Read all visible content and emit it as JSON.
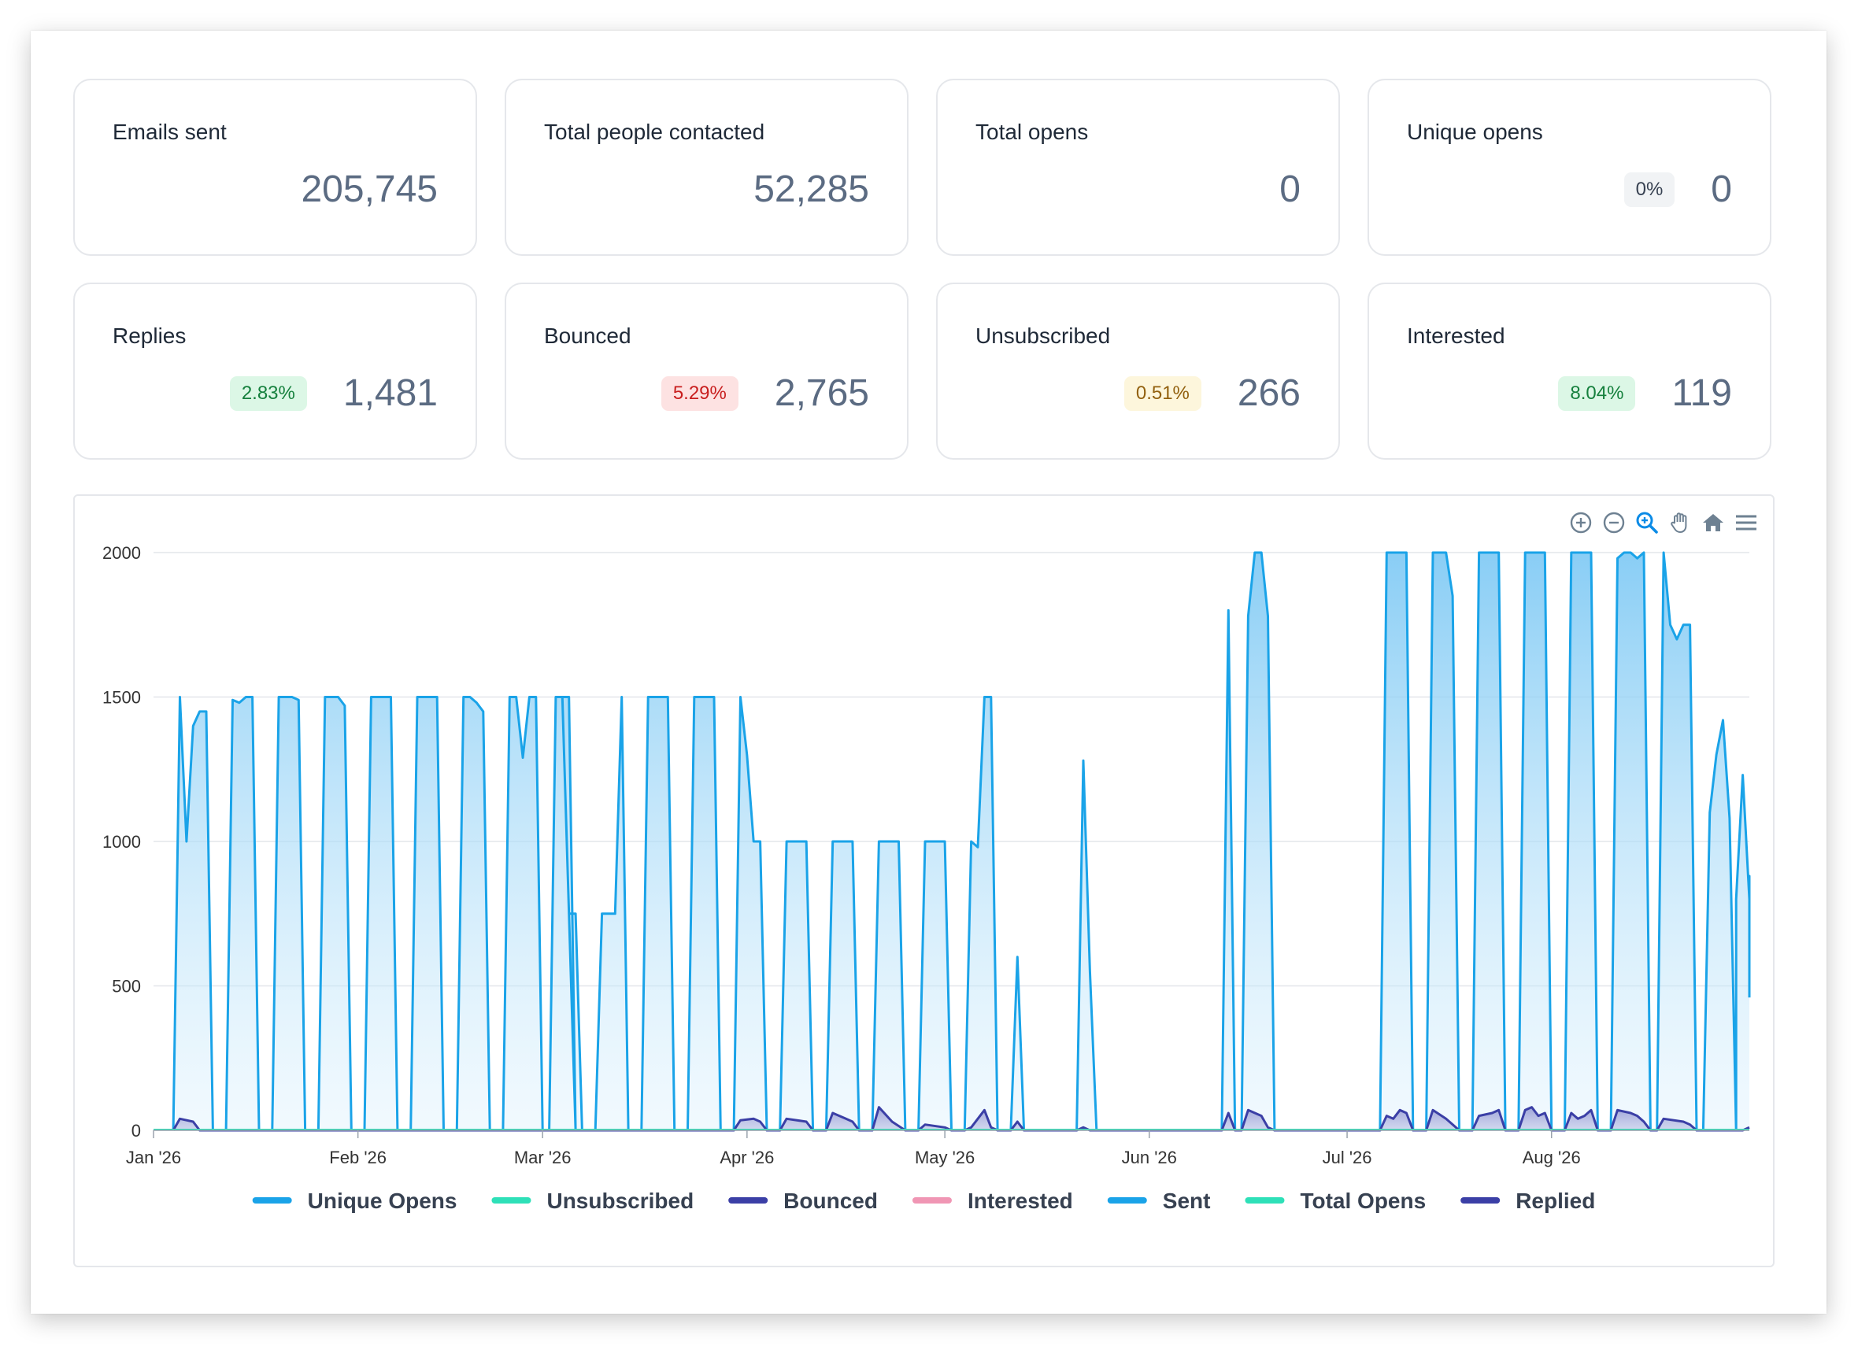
{
  "stats": [
    {
      "title": "Emails sent",
      "value": "205,745",
      "badge": null,
      "badge_color": null
    },
    {
      "title": "Total people contacted",
      "value": "52,285",
      "badge": null,
      "badge_color": null
    },
    {
      "title": "Total opens",
      "value": "0",
      "badge": null,
      "badge_color": null
    },
    {
      "title": "Unique opens",
      "value": "0",
      "badge": "0%",
      "badge_color": "gray"
    },
    {
      "title": "Replies",
      "value": "1,481",
      "badge": "2.83%",
      "badge_color": "green"
    },
    {
      "title": "Bounced",
      "value": "2,765",
      "badge": "5.29%",
      "badge_color": "red"
    },
    {
      "title": "Unsubscribed",
      "value": "266",
      "badge": "0.51%",
      "badge_color": "yellow"
    },
    {
      "title": "Interested",
      "value": "119",
      "badge": "8.04%",
      "badge_color": "green"
    }
  ],
  "toolbar": {
    "icons": [
      "zoom-in-icon",
      "zoom-out-icon",
      "selection-zoom-icon",
      "pan-icon",
      "home-icon",
      "menu-icon"
    ]
  },
  "colors": {
    "sent": "#1aa3e8",
    "sent_fill": "#8ccff5",
    "replied": "#3b3fa6",
    "bounced": "#3b3fa6",
    "interested": "#f096b4",
    "unsubscribed": "#2ee0b8",
    "total_opens": "#2ee0b8",
    "unique_opens": "#1aa3e8",
    "grid": "#e3e6ea",
    "axis_text": "#333333"
  },
  "chart_data": {
    "type": "area",
    "x_axis": "date",
    "x_range": [
      "2026-01-01",
      "2026-08-31"
    ],
    "ylim": [
      0,
      2000
    ],
    "yticks": [
      0,
      500,
      1000,
      1500,
      2000
    ],
    "xticks": [
      {
        "date": "2026-01-01",
        "label": "Jan '26"
      },
      {
        "date": "2026-02-01",
        "label": "Feb '26"
      },
      {
        "date": "2026-03-01",
        "label": "Mar '26"
      },
      {
        "date": "2026-04-01",
        "label": "Apr '26"
      },
      {
        "date": "2026-05-01",
        "label": "May '26"
      },
      {
        "date": "2026-06-01",
        "label": "Jun '26"
      },
      {
        "date": "2026-07-01",
        "label": "Jul '26"
      },
      {
        "date": "2026-08-01",
        "label": "Aug '26"
      }
    ],
    "grid": true,
    "legend_position": "bottom-center",
    "legend": [
      "Unique Opens",
      "Unsubscribed",
      "Bounced",
      "Interested",
      "Sent",
      "Total Opens",
      "Replied"
    ],
    "series": [
      {
        "name": "Sent",
        "points": [
          [
            "2026-01-04",
            0
          ],
          [
            "2026-01-05",
            1500
          ],
          [
            "2026-01-06",
            1000
          ],
          [
            "2026-01-07",
            1400
          ],
          [
            "2026-01-08",
            1450
          ],
          [
            "2026-01-09",
            1450
          ],
          [
            "2026-01-10",
            0
          ],
          [
            "2026-01-12",
            0
          ],
          [
            "2026-01-13",
            1490
          ],
          [
            "2026-01-14",
            1480
          ],
          [
            "2026-01-15",
            1500
          ],
          [
            "2026-01-16",
            1500
          ],
          [
            "2026-01-17",
            0
          ],
          [
            "2026-01-19",
            0
          ],
          [
            "2026-01-20",
            1500
          ],
          [
            "2026-01-22",
            1500
          ],
          [
            "2026-01-23",
            1490
          ],
          [
            "2026-01-24",
            0
          ],
          [
            "2026-01-26",
            0
          ],
          [
            "2026-01-27",
            1500
          ],
          [
            "2026-01-29",
            1500
          ],
          [
            "2026-01-30",
            1470
          ],
          [
            "2026-01-31",
            0
          ],
          [
            "2026-02-02",
            0
          ],
          [
            "2026-02-03",
            1500
          ],
          [
            "2026-02-05",
            1500
          ],
          [
            "2026-02-06",
            1500
          ],
          [
            "2026-02-07",
            0
          ],
          [
            "2026-02-09",
            0
          ],
          [
            "2026-02-10",
            1500
          ],
          [
            "2026-02-13",
            1500
          ],
          [
            "2026-02-14",
            0
          ],
          [
            "2026-02-16",
            0
          ],
          [
            "2026-02-17",
            1500
          ],
          [
            "2026-02-18",
            1500
          ],
          [
            "2026-02-19",
            1480
          ],
          [
            "2026-02-20",
            1450
          ],
          [
            "2026-02-21",
            0
          ],
          [
            "2026-02-23",
            0
          ],
          [
            "2026-02-24",
            1500
          ],
          [
            "2026-02-25",
            1500
          ],
          [
            "2026-02-26",
            1290
          ],
          [
            "2026-02-27",
            1500
          ],
          [
            "2026-02-28",
            1500
          ],
          [
            "2026-03-01",
            0
          ],
          [
            "2026-03-02",
            0
          ],
          [
            "2026-03-03",
            1500
          ],
          [
            "2026-03-05",
            1500
          ],
          [
            "2026-03-06",
            0
          ],
          [
            "2026-03-04",
            1500
          ],
          [
            "2026-03-05",
            750
          ],
          [
            "2026-03-06",
            750
          ],
          [
            "2026-03-07",
            0
          ],
          [
            "2026-03-09",
            0
          ],
          [
            "2026-03-10",
            750
          ],
          [
            "2026-03-12",
            750
          ],
          [
            "2026-03-13",
            1500
          ],
          [
            "2026-03-14",
            0
          ],
          [
            "2026-03-16",
            0
          ],
          [
            "2026-03-17",
            1500
          ],
          [
            "2026-03-20",
            1500
          ],
          [
            "2026-03-21",
            0
          ],
          [
            "2026-03-23",
            0
          ],
          [
            "2026-03-24",
            1500
          ],
          [
            "2026-03-27",
            1500
          ],
          [
            "2026-03-28",
            0
          ],
          [
            "2026-03-30",
            0
          ],
          [
            "2026-03-31",
            1500
          ],
          [
            "2026-04-01",
            1300
          ],
          [
            "2026-04-02",
            1000
          ],
          [
            "2026-04-03",
            1000
          ],
          [
            "2026-04-04",
            0
          ],
          [
            "2026-04-06",
            0
          ],
          [
            "2026-04-07",
            1000
          ],
          [
            "2026-04-10",
            1000
          ],
          [
            "2026-04-11",
            0
          ],
          [
            "2026-04-13",
            0
          ],
          [
            "2026-04-14",
            1000
          ],
          [
            "2026-04-17",
            1000
          ],
          [
            "2026-04-18",
            0
          ],
          [
            "2026-04-20",
            0
          ],
          [
            "2026-04-21",
            1000
          ],
          [
            "2026-04-24",
            1000
          ],
          [
            "2026-04-25",
            0
          ],
          [
            "2026-04-27",
            0
          ],
          [
            "2026-04-28",
            1000
          ],
          [
            "2026-05-01",
            1000
          ],
          [
            "2026-05-02",
            0
          ],
          [
            "2026-05-04",
            0
          ],
          [
            "2026-05-05",
            1000
          ],
          [
            "2026-05-06",
            980
          ],
          [
            "2026-05-07",
            1500
          ],
          [
            "2026-05-08",
            1500
          ],
          [
            "2026-05-09",
            0
          ],
          [
            "2026-05-11",
            0
          ],
          [
            "2026-05-12",
            600
          ],
          [
            "2026-05-13",
            0
          ],
          [
            "2026-05-21",
            0
          ],
          [
            "2026-05-22",
            1280
          ],
          [
            "2026-05-23",
            550
          ],
          [
            "2026-05-24",
            0
          ],
          [
            "2026-06-12",
            0
          ],
          [
            "2026-06-13",
            1800
          ],
          [
            "2026-06-14",
            0
          ],
          [
            "2026-06-15",
            0
          ],
          [
            "2026-06-16",
            1780
          ],
          [
            "2026-06-17",
            2000
          ],
          [
            "2026-06-18",
            2000
          ],
          [
            "2026-06-19",
            1780
          ],
          [
            "2026-06-20",
            0
          ],
          [
            "2026-07-06",
            0
          ],
          [
            "2026-07-07",
            2000
          ],
          [
            "2026-07-10",
            2000
          ],
          [
            "2026-07-11",
            0
          ],
          [
            "2026-07-13",
            0
          ],
          [
            "2026-07-14",
            2000
          ],
          [
            "2026-07-16",
            2000
          ],
          [
            "2026-07-17",
            1850
          ],
          [
            "2026-07-18",
            0
          ],
          [
            "2026-07-20",
            0
          ],
          [
            "2026-07-21",
            2000
          ],
          [
            "2026-07-24",
            2000
          ],
          [
            "2026-07-25",
            0
          ],
          [
            "2026-07-27",
            0
          ],
          [
            "2026-07-28",
            2000
          ],
          [
            "2026-07-31",
            2000
          ],
          [
            "2026-08-01",
            0
          ],
          [
            "2026-08-03",
            0
          ],
          [
            "2026-08-04",
            2000
          ],
          [
            "2026-08-07",
            2000
          ],
          [
            "2026-08-08",
            0
          ],
          [
            "2026-08-10",
            0
          ],
          [
            "2026-08-11",
            1980
          ],
          [
            "2026-08-12",
            2000
          ],
          [
            "2026-08-13",
            2000
          ],
          [
            "2026-08-14",
            1980
          ],
          [
            "2026-08-15",
            2000
          ],
          [
            "2026-08-16",
            0
          ],
          [
            "2026-08-17",
            0
          ],
          [
            "2026-08-18",
            2000
          ],
          [
            "2026-08-19",
            1750
          ],
          [
            "2026-08-20",
            1700
          ],
          [
            "2026-08-21",
            1750
          ],
          [
            "2026-08-22",
            1750
          ],
          [
            "2026-08-23",
            0
          ],
          [
            "2026-08-24",
            0
          ],
          [
            "2026-08-25",
            1100
          ],
          [
            "2026-08-26",
            1300
          ],
          [
            "2026-08-27",
            1420
          ],
          [
            "2026-08-28",
            1080
          ],
          [
            "2026-08-29",
            0
          ],
          [
            "2026-08-29",
            800
          ],
          [
            "2026-08-30",
            1230
          ],
          [
            "2026-08-31",
            800
          ],
          [
            "2026-08-31",
            880
          ],
          [
            "2026-08-31",
            460
          ]
        ]
      },
      {
        "name": "Replied",
        "points": [
          [
            "2026-01-04",
            0
          ],
          [
            "2026-01-05",
            40
          ],
          [
            "2026-01-07",
            30
          ],
          [
            "2026-01-08",
            0
          ],
          [
            "2026-03-30",
            0
          ],
          [
            "2026-03-31",
            35
          ],
          [
            "2026-04-02",
            40
          ],
          [
            "2026-04-03",
            30
          ],
          [
            "2026-04-04",
            0
          ],
          [
            "2026-04-06",
            0
          ],
          [
            "2026-04-07",
            40
          ],
          [
            "2026-04-10",
            30
          ],
          [
            "2026-04-11",
            0
          ],
          [
            "2026-04-13",
            0
          ],
          [
            "2026-04-14",
            60
          ],
          [
            "2026-04-16",
            40
          ],
          [
            "2026-04-17",
            30
          ],
          [
            "2026-04-18",
            0
          ],
          [
            "2026-04-20",
            0
          ],
          [
            "2026-04-21",
            80
          ],
          [
            "2026-04-23",
            30
          ],
          [
            "2026-04-25",
            0
          ],
          [
            "2026-04-27",
            0
          ],
          [
            "2026-04-28",
            20
          ],
          [
            "2026-05-01",
            10
          ],
          [
            "2026-05-02",
            0
          ],
          [
            "2026-05-04",
            0
          ],
          [
            "2026-05-05",
            10
          ],
          [
            "2026-05-07",
            70
          ],
          [
            "2026-05-08",
            10
          ],
          [
            "2026-05-09",
            0
          ],
          [
            "2026-05-11",
            0
          ],
          [
            "2026-05-12",
            30
          ],
          [
            "2026-05-13",
            0
          ],
          [
            "2026-05-21",
            0
          ],
          [
            "2026-05-22",
            10
          ],
          [
            "2026-05-23",
            0
          ],
          [
            "2026-06-12",
            0
          ],
          [
            "2026-06-13",
            60
          ],
          [
            "2026-06-14",
            0
          ],
          [
            "2026-06-15",
            0
          ],
          [
            "2026-06-16",
            70
          ],
          [
            "2026-06-18",
            50
          ],
          [
            "2026-06-19",
            10
          ],
          [
            "2026-06-20",
            0
          ],
          [
            "2026-07-06",
            0
          ],
          [
            "2026-07-07",
            50
          ],
          [
            "2026-07-08",
            40
          ],
          [
            "2026-07-09",
            70
          ],
          [
            "2026-07-10",
            60
          ],
          [
            "2026-07-11",
            0
          ],
          [
            "2026-07-13",
            0
          ],
          [
            "2026-07-14",
            70
          ],
          [
            "2026-07-16",
            40
          ],
          [
            "2026-07-18",
            0
          ],
          [
            "2026-07-20",
            0
          ],
          [
            "2026-07-21",
            50
          ],
          [
            "2026-07-23",
            60
          ],
          [
            "2026-07-24",
            70
          ],
          [
            "2026-07-25",
            0
          ],
          [
            "2026-07-27",
            0
          ],
          [
            "2026-07-28",
            70
          ],
          [
            "2026-07-29",
            80
          ],
          [
            "2026-07-30",
            50
          ],
          [
            "2026-07-31",
            60
          ],
          [
            "2026-08-01",
            0
          ],
          [
            "2026-08-03",
            0
          ],
          [
            "2026-08-04",
            60
          ],
          [
            "2026-08-05",
            40
          ],
          [
            "2026-08-06",
            50
          ],
          [
            "2026-08-07",
            70
          ],
          [
            "2026-08-08",
            0
          ],
          [
            "2026-08-10",
            0
          ],
          [
            "2026-08-11",
            70
          ],
          [
            "2026-08-13",
            60
          ],
          [
            "2026-08-14",
            50
          ],
          [
            "2026-08-15",
            30
          ],
          [
            "2026-08-16",
            0
          ],
          [
            "2026-08-17",
            0
          ],
          [
            "2026-08-18",
            40
          ],
          [
            "2026-08-21",
            30
          ],
          [
            "2026-08-22",
            20
          ],
          [
            "2026-08-23",
            0
          ],
          [
            "2026-08-30",
            0
          ],
          [
            "2026-08-31",
            10
          ]
        ]
      }
    ]
  }
}
